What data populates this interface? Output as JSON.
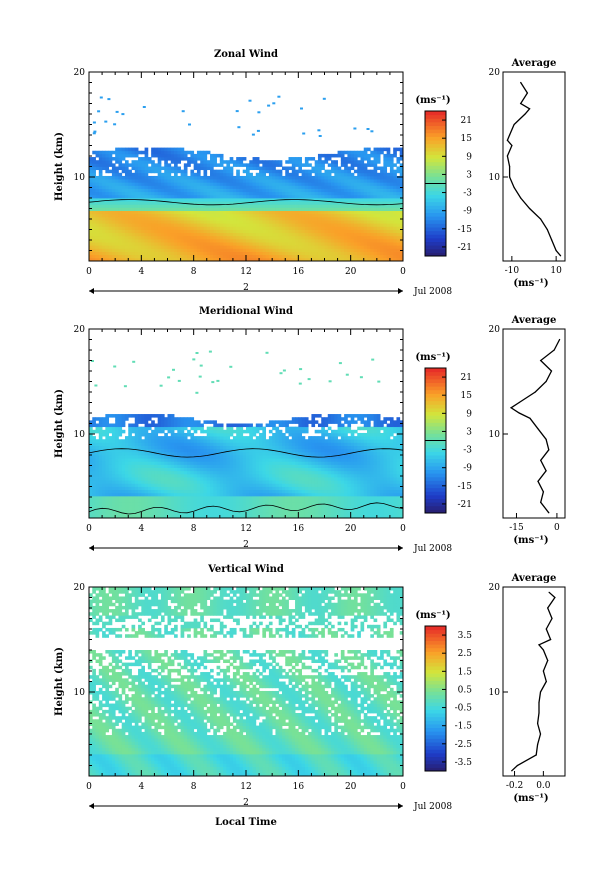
{
  "chart_data": [
    {
      "type": "heatmap",
      "title": "Zonal Wind",
      "ylabel": "Height (km)",
      "x_ticks": [
        "0",
        "4",
        "8",
        "12",
        "16",
        "20",
        "0"
      ],
      "y_ticks": [
        "10",
        "20"
      ],
      "xlim": [
        0,
        24
      ],
      "ylim": [
        2,
        20
      ],
      "day_label": "2",
      "date_label": "Jul 2008",
      "colorbar": {
        "unit": "(ms⁻¹)",
        "ticks": [
          "21",
          "15",
          "9",
          "3",
          "-3",
          "-9",
          "-15",
          "-21"
        ],
        "range": [
          -24,
          24
        ]
      },
      "zero_contour": true,
      "average": {
        "title": "Average",
        "x_ticks": [
          "-10",
          "10"
        ],
        "xlim": [
          -14,
          14
        ],
        "unit": "(ms⁻¹)",
        "y_ticks": [
          "10",
          "20"
        ],
        "height": [
          2.5,
          3,
          4,
          5,
          6,
          7,
          8,
          9,
          10,
          11,
          12,
          13,
          13.5,
          14,
          15,
          16,
          16.5,
          17,
          18,
          19
        ],
        "value": [
          12,
          10,
          8,
          6,
          3,
          -2,
          -6,
          -9,
          -11,
          -11,
          -12,
          -10,
          -12,
          -11,
          -9,
          -4,
          -2,
          -6,
          -3,
          -6
        ]
      }
    },
    {
      "type": "heatmap",
      "title": "Meridional Wind",
      "ylabel": "Height (km)",
      "x_ticks": [
        "0",
        "4",
        "8",
        "12",
        "16",
        "20",
        "0"
      ],
      "y_ticks": [
        "10",
        "20"
      ],
      "xlim": [
        0,
        24
      ],
      "ylim": [
        2,
        20
      ],
      "day_label": "2",
      "date_label": "Jul 2008",
      "colorbar": {
        "unit": "(ms⁻¹)",
        "ticks": [
          "21",
          "15",
          "9",
          "3",
          "-3",
          "-9",
          "-15",
          "-21"
        ],
        "range": [
          -24,
          24
        ]
      },
      "zero_contour": true,
      "average": {
        "title": "Average",
        "x_ticks": [
          "-15",
          "0"
        ],
        "xlim": [
          -20,
          3
        ],
        "unit": "(ms⁻¹)",
        "y_ticks": [
          "10",
          "20"
        ],
        "height": [
          2.5,
          3.5,
          4.5,
          5.5,
          6.5,
          7.5,
          8.5,
          9.5,
          10.5,
          11.5,
          12,
          12.5,
          13,
          14,
          15,
          16,
          17,
          18,
          19
        ],
        "value": [
          -3,
          -6,
          -5,
          -7,
          -4,
          -6,
          -3,
          -4,
          -7,
          -10,
          -14,
          -17,
          -14,
          -8,
          -4,
          -2,
          -6,
          -1,
          1
        ]
      }
    },
    {
      "type": "heatmap",
      "title": "Vertical Wind",
      "ylabel": "Height (km)",
      "xlabel": "Local Time",
      "x_ticks": [
        "0",
        "4",
        "8",
        "12",
        "16",
        "20",
        "0"
      ],
      "y_ticks": [
        "10",
        "20"
      ],
      "xlim": [
        0,
        24
      ],
      "ylim": [
        2,
        20
      ],
      "day_label": "2",
      "date_label": "Jul 2008",
      "colorbar": {
        "unit": "(ms⁻¹)",
        "ticks": [
          "3.5",
          "2.5",
          "1.5",
          "0.5",
          "-0.5",
          "-1.5",
          "-2.5",
          "-3.5"
        ],
        "range": [
          -4,
          4
        ]
      },
      "zero_contour": false,
      "average": {
        "title": "Average",
        "x_ticks": [
          "-0.2",
          "0.0"
        ],
        "xlim": [
          -0.28,
          0.15
        ],
        "unit": "(ms⁻¹)",
        "y_ticks": [
          "10",
          "20"
        ],
        "height": [
          2.5,
          3,
          4,
          5,
          6,
          7,
          8,
          9,
          10,
          11,
          12,
          13,
          14,
          14.5,
          15,
          16,
          17,
          18,
          19,
          19.5
        ],
        "value": [
          -0.22,
          -0.18,
          -0.05,
          -0.04,
          -0.02,
          -0.04,
          -0.03,
          -0.03,
          -0.02,
          0.02,
          0.0,
          0.03,
          0.0,
          -0.03,
          0.05,
          0.02,
          0.06,
          0.03,
          0.08,
          0.04
        ]
      }
    }
  ]
}
